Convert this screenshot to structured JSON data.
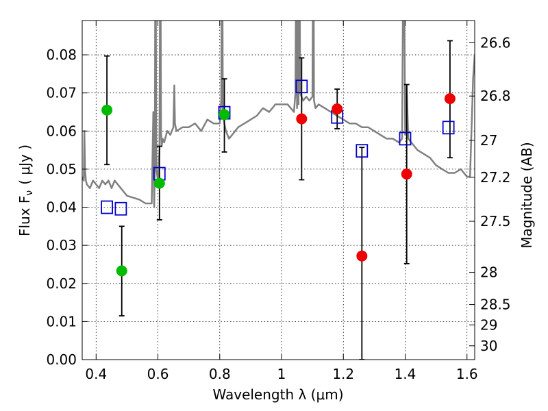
{
  "chart_data": {
    "type": "scatter",
    "xlabel": "Wavelength  λ (μm)",
    "ylabel": "Flux  F",
    "ylabel_sub": "ν",
    "ylabel_unit": "( μJy )",
    "y2label": "Magnitude (AB)",
    "xlim": [
      0.355,
      1.625
    ],
    "ylim": [
      0.0,
      0.089
    ],
    "x_ticks": [
      0.4,
      0.6,
      0.8,
      1.0,
      1.2,
      1.4,
      1.6
    ],
    "x_tick_labels": [
      "0.4",
      "0.6",
      "0.8",
      "1",
      "1.2",
      "1.4",
      "1.6"
    ],
    "y_ticks": [
      0.0,
      0.01,
      0.02,
      0.03,
      0.04,
      0.05,
      0.06,
      0.07,
      0.08
    ],
    "y_tick_labels": [
      "0.00",
      "0.01",
      "0.02",
      "0.03",
      "0.04",
      "0.05",
      "0.06",
      "0.07",
      "0.08"
    ],
    "mag_ticks": [
      26.6,
      26.8,
      27.0,
      27.2,
      27.5,
      28.0,
      28.5,
      29.0,
      30.0
    ],
    "mag_tick_labels": [
      "26.6",
      "26.8",
      "27",
      "27.2",
      "27.5",
      "28",
      "28.5",
      "29",
      "30"
    ],
    "grid": true,
    "colors": {
      "model": "#808080",
      "green": "#00bb00",
      "red": "#ee0000",
      "square": "#0000cc",
      "error": "#000000"
    },
    "series": [
      {
        "name": "model-spectrum",
        "kind": "line",
        "x": [
          0.355,
          0.36,
          0.362,
          0.364,
          0.367,
          0.37,
          0.38,
          0.39,
          0.4,
          0.41,
          0.42,
          0.43,
          0.44,
          0.45,
          0.46,
          0.47,
          0.48,
          0.49,
          0.5,
          0.52,
          0.54,
          0.56,
          0.58,
          0.585,
          0.588,
          0.59,
          0.592,
          0.595,
          0.6,
          0.605,
          0.608,
          0.61,
          0.612,
          0.615,
          0.62,
          0.63,
          0.64,
          0.65,
          0.653,
          0.655,
          0.66,
          0.68,
          0.7,
          0.72,
          0.74,
          0.76,
          0.78,
          0.8,
          0.805,
          0.808,
          0.81,
          0.815,
          0.82,
          0.83,
          0.84,
          0.86,
          0.88,
          0.9,
          0.92,
          0.94,
          0.96,
          0.98,
          1.0,
          1.02,
          1.03,
          1.04,
          1.045,
          1.048,
          1.05,
          1.053,
          1.055,
          1.058,
          1.06,
          1.07,
          1.08,
          1.09,
          1.1,
          1.103,
          1.105,
          1.11,
          1.12,
          1.14,
          1.16,
          1.18,
          1.2,
          1.22,
          1.24,
          1.26,
          1.28,
          1.3,
          1.32,
          1.34,
          1.36,
          1.38,
          1.39,
          1.395,
          1.4,
          1.405,
          1.41,
          1.42,
          1.44,
          1.46,
          1.48,
          1.5,
          1.52,
          1.54,
          1.56,
          1.58,
          1.6,
          1.61,
          1.62,
          1.625
        ],
        "y": [
          0.048,
          0.047,
          0.06,
          0.05,
          0.047,
          0.046,
          0.045,
          0.047,
          0.046,
          0.045,
          0.047,
          0.046,
          0.047,
          0.045,
          0.047,
          0.046,
          0.045,
          0.044,
          0.043,
          0.0425,
          0.042,
          0.041,
          0.041,
          0.065,
          0.04,
          0.05,
          0.12,
          0.05,
          0.047,
          0.055,
          0.12,
          0.06,
          0.056,
          0.058,
          0.057,
          0.06,
          0.059,
          0.061,
          0.072,
          0.062,
          0.06,
          0.061,
          0.061,
          0.062,
          0.06,
          0.063,
          0.062,
          0.062,
          0.068,
          0.12,
          0.065,
          0.062,
          0.06,
          0.058,
          0.059,
          0.061,
          0.062,
          0.063,
          0.064,
          0.066,
          0.065,
          0.067,
          0.067,
          0.067,
          0.066,
          0.065,
          0.07,
          0.12,
          0.066,
          0.1,
          0.067,
          0.12,
          0.07,
          0.068,
          0.069,
          0.068,
          0.069,
          0.12,
          0.068,
          0.066,
          0.067,
          0.066,
          0.065,
          0.064,
          0.063,
          0.062,
          0.062,
          0.061,
          0.061,
          0.06,
          0.059,
          0.058,
          0.058,
          0.057,
          0.058,
          0.12,
          0.059,
          0.072,
          0.058,
          0.057,
          0.055,
          0.054,
          0.053,
          0.051,
          0.05,
          0.049,
          0.049,
          0.05,
          0.048,
          0.048,
          0.074,
          0.08
        ]
      },
      {
        "name": "green-points",
        "kind": "points",
        "x": [
          0.435,
          0.483,
          0.605,
          0.815
        ],
        "y": [
          0.0655,
          0.0233,
          0.0463,
          0.0643
        ]
      },
      {
        "name": "red-points",
        "kind": "points",
        "x": [
          1.065,
          1.18,
          1.26,
          1.405,
          1.545
        ],
        "y": [
          0.0632,
          0.0658,
          0.0272,
          0.0487,
          0.0685
        ]
      },
      {
        "name": "model-photometry",
        "kind": "squares",
        "x": [
          0.435,
          0.48,
          0.605,
          0.815,
          1.065,
          1.18,
          1.26,
          1.4,
          1.54
        ],
        "y": [
          0.04,
          0.0396,
          0.0488,
          0.0648,
          0.0717,
          0.0637,
          0.0548,
          0.058,
          0.0609
        ]
      },
      {
        "name": "error-bars",
        "kind": "errorbars",
        "x": [
          0.435,
          0.483,
          0.605,
          0.815,
          1.065,
          1.18,
          1.26,
          1.405,
          1.545
        ],
        "low": [
          0.0512,
          0.0115,
          0.0367,
          0.0545,
          0.0472,
          0.0606,
          0.0,
          0.0252,
          0.053
        ],
        "high": [
          0.0797,
          0.035,
          0.056,
          0.0737,
          0.0792,
          0.071,
          0.0557,
          0.0722,
          0.0837
        ]
      }
    ]
  }
}
